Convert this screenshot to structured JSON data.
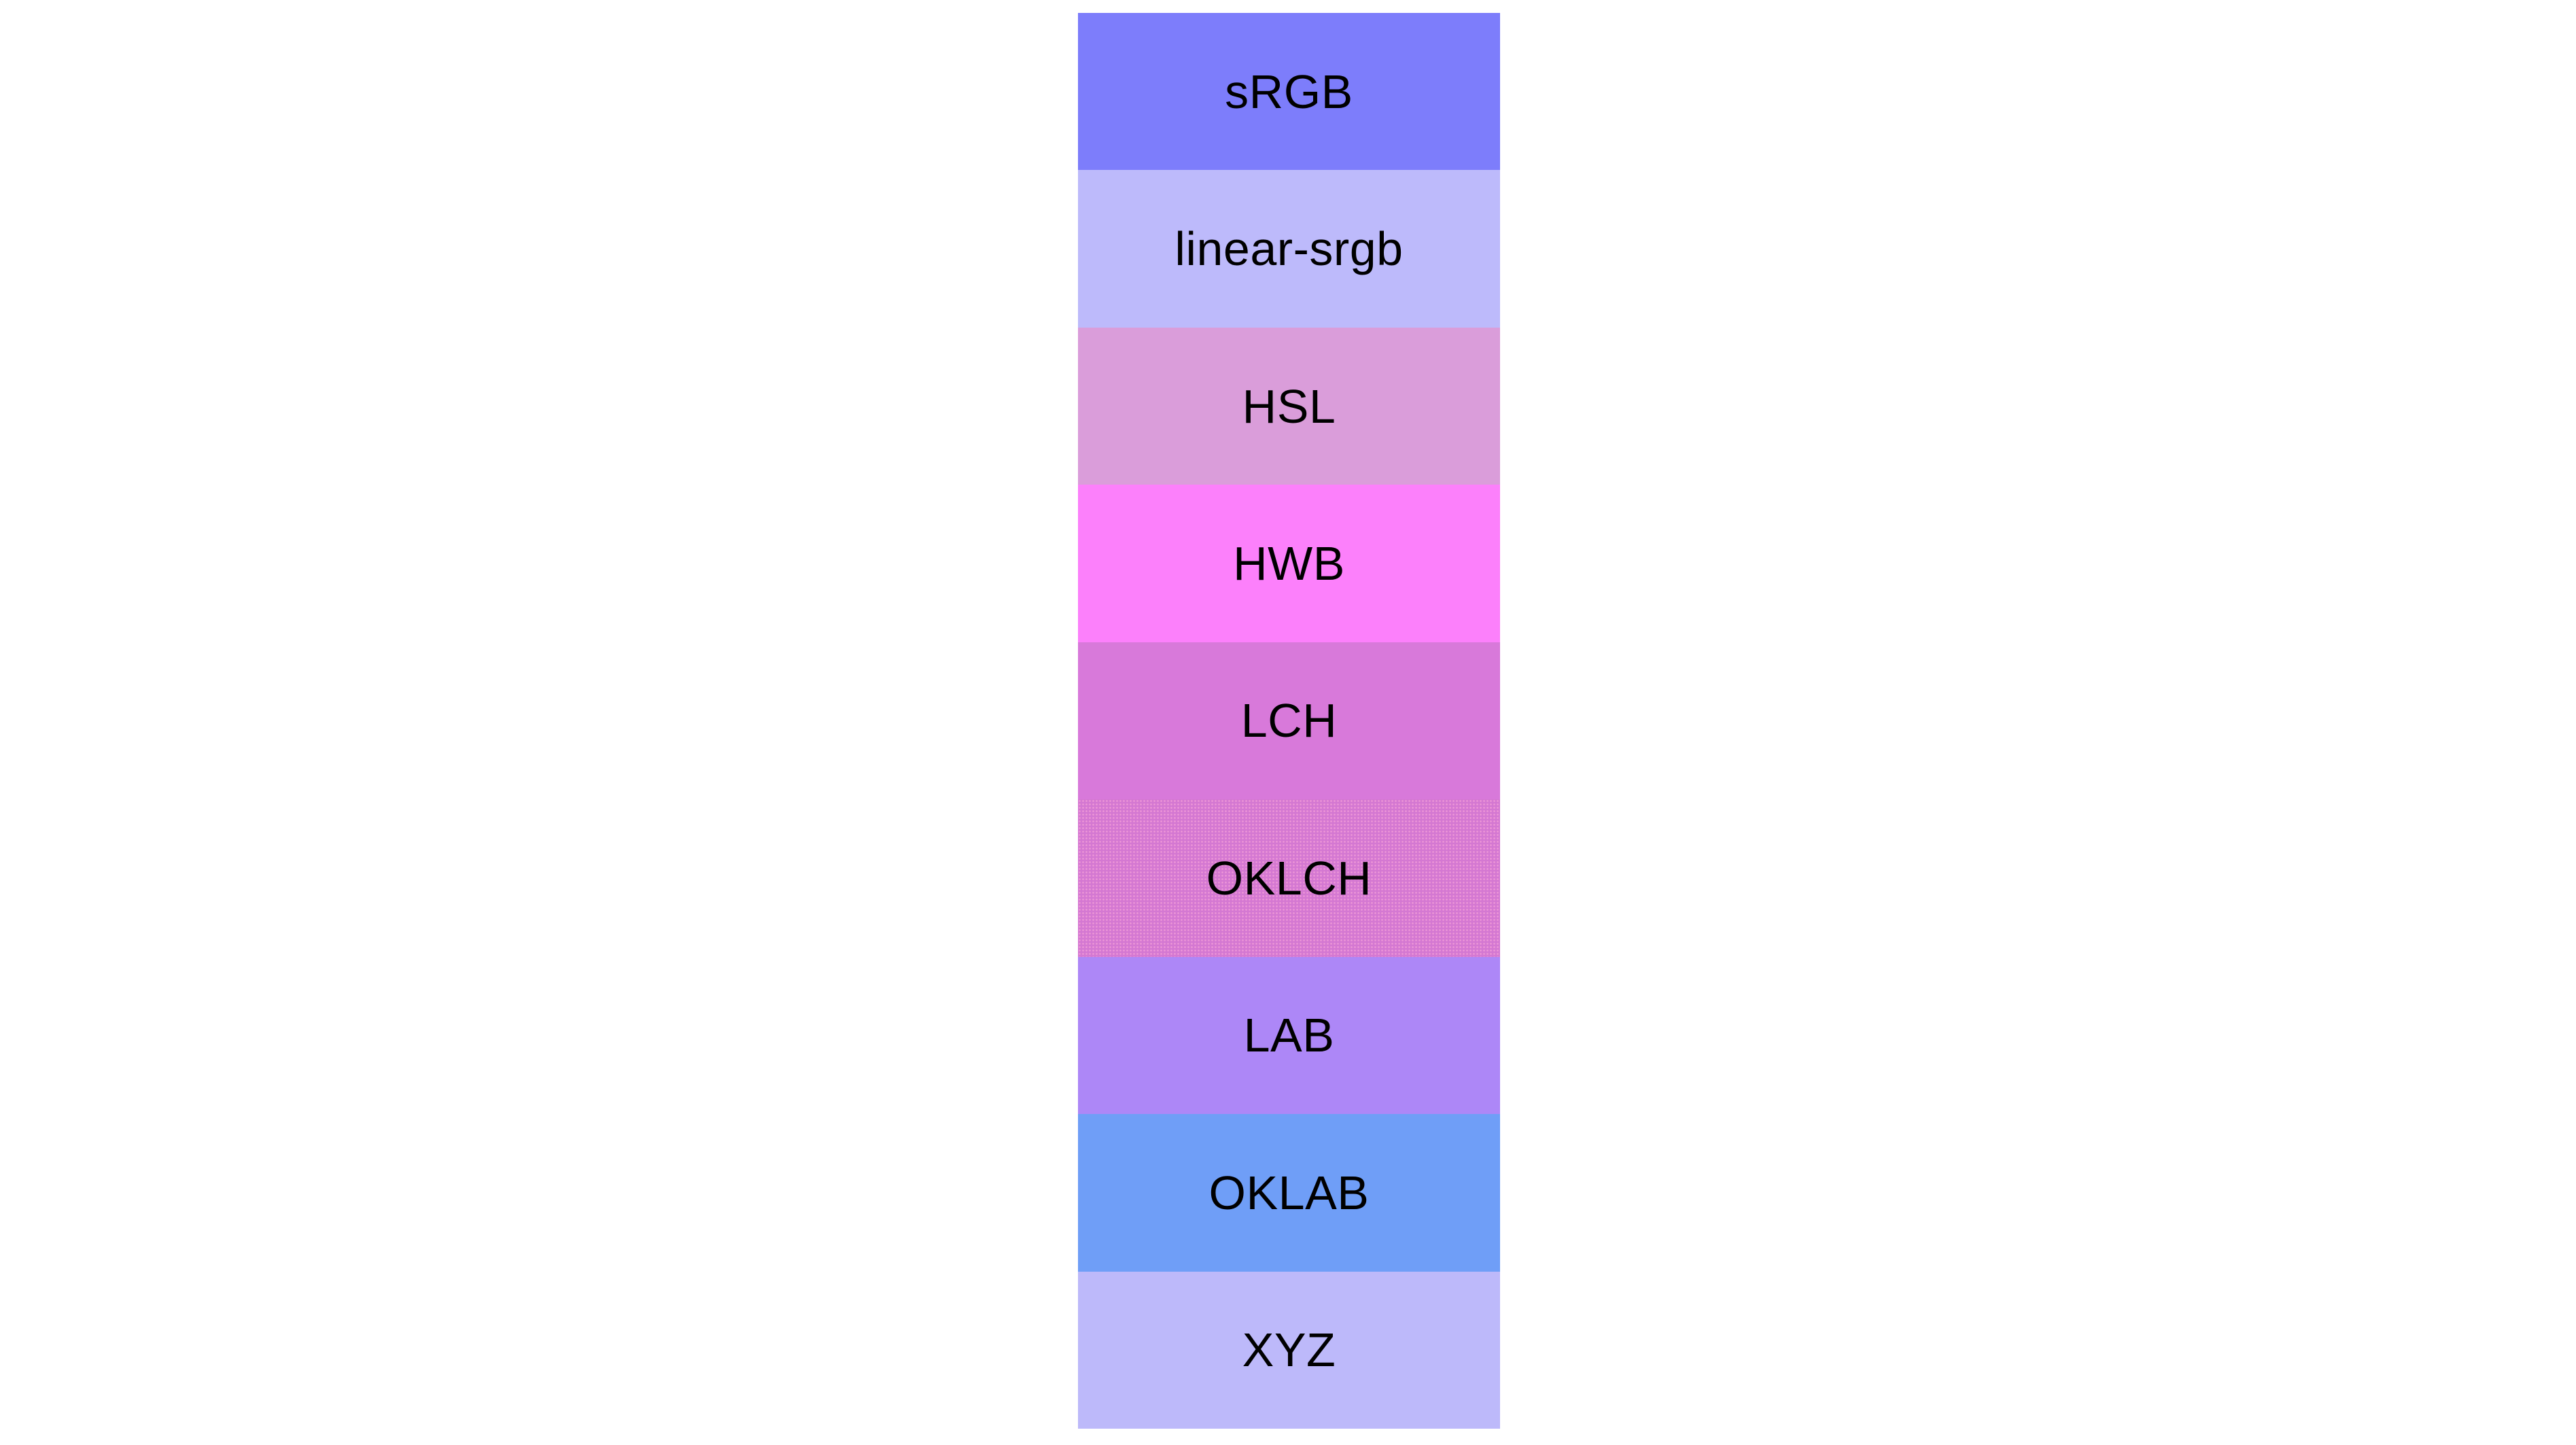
{
  "page": {
    "background_color": "#ffffff",
    "label_text_color": "#000000"
  },
  "swatches": [
    {
      "label": "sRGB",
      "color": "#7d7dfb"
    },
    {
      "label": "linear-srgb",
      "color": "#bdbafb"
    },
    {
      "label": "HSL",
      "color": "#da9dda"
    },
    {
      "label": "HWB",
      "color": "#fc80fb"
    },
    {
      "label": "LCH",
      "color": "#d879da"
    },
    {
      "label": "OKLCH",
      "color": "#d478d2",
      "dithered": true
    },
    {
      "label": "LAB",
      "color": "#ad87f7"
    },
    {
      "label": "OKLAB",
      "color": "#6f9ef7"
    },
    {
      "label": "XYZ",
      "color": "#bdb9fa"
    }
  ]
}
